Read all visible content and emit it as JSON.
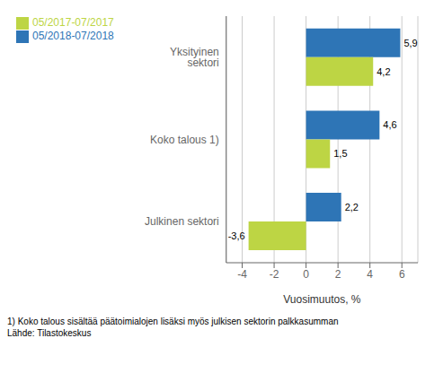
{
  "chart_data": {
    "type": "bar",
    "orientation": "horizontal",
    "categories": [
      "Julkinen sektori",
      "Koko talous 1)",
      "Yksityinen sektori"
    ],
    "series": [
      {
        "name": "05/2018-07/2018",
        "color": "#2E75B6",
        "values": [
          2.2,
          4.6,
          5.9
        ],
        "value_labels": [
          "2,2",
          "4,6",
          "5,9"
        ]
      },
      {
        "name": "05/2017-07/2017",
        "color": "#BDD544",
        "values": [
          -3.6,
          1.5,
          4.2
        ],
        "value_labels": [
          "-3,6",
          "1,5",
          "4,2"
        ]
      }
    ],
    "xlabel": "Vuosimuutos, %",
    "xlim": [
      -5.0,
      7.0
    ],
    "xticks": [
      -4,
      -2,
      0,
      2,
      4,
      6
    ],
    "grid": true,
    "legend": "upper left",
    "data_labels": true,
    "annotations": [
      "1) Koko talous sisältää päätoimialojen lisäksi myös julkisen sektorin palkkasumman",
      "Lähde: Tilastokeskus"
    ]
  }
}
